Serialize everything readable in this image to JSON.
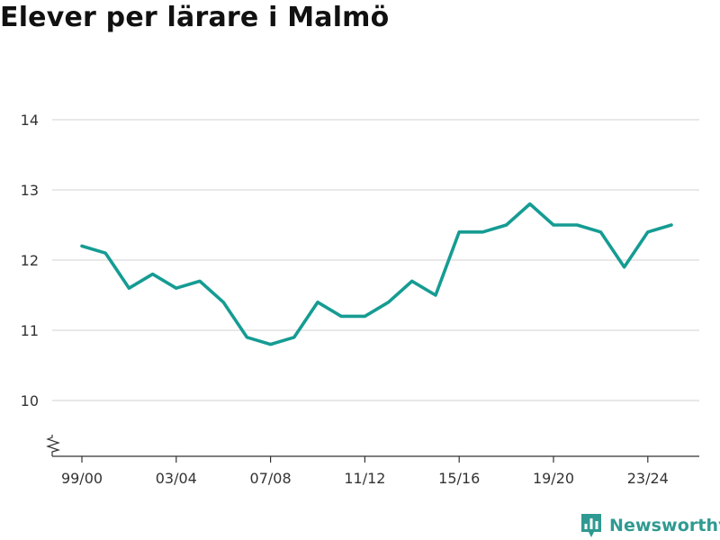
{
  "chart_data": {
    "type": "line",
    "title": "Elever per lärare i Malmö",
    "xlabel": "",
    "ylabel": "",
    "x": [
      "99/00",
      "00/01",
      "01/02",
      "02/03",
      "03/04",
      "04/05",
      "05/06",
      "06/07",
      "07/08",
      "08/09",
      "09/10",
      "10/11",
      "11/12",
      "12/13",
      "13/14",
      "14/15",
      "15/16",
      "16/17",
      "17/18",
      "18/19",
      "19/20",
      "20/21",
      "21/22",
      "22/23",
      "23/24",
      "24/25"
    ],
    "series": [
      {
        "values": [
          12.2,
          12.1,
          11.6,
          11.8,
          11.6,
          11.7,
          11.4,
          10.9,
          10.8,
          10.9,
          11.4,
          11.2,
          11.2,
          11.4,
          11.7,
          11.5,
          12.4,
          12.4,
          12.5,
          12.8,
          12.5,
          12.5,
          12.4,
          11.9,
          12.4,
          12.5
        ]
      }
    ],
    "x_tick_labels": [
      "99/00",
      "03/04",
      "07/08",
      "11/12",
      "15/16",
      "19/20",
      "23/24"
    ],
    "y_ticks": [
      10,
      11,
      12,
      13,
      14
    ],
    "ylim": [
      9.5,
      14
    ],
    "grid": true,
    "axis_break": true,
    "line_color": "#159c93"
  },
  "brand": {
    "name": "Newsworthy",
    "color": "#2f9a91"
  }
}
